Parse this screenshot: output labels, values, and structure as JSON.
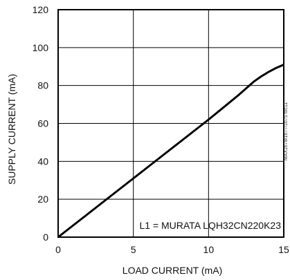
{
  "chart_data": {
    "type": "line",
    "title": "",
    "xlabel": "LOAD CURRENT (mA)",
    "ylabel": "SUPPLY CURRENT (mA)",
    "xlim": [
      0,
      15
    ],
    "ylim": [
      0,
      120
    ],
    "xticks": [
      0,
      5,
      10,
      15
    ],
    "yticks": [
      0,
      20,
      40,
      60,
      80,
      100,
      120
    ],
    "grid": true,
    "annotation": "L1 = MURATA LQH32CN220K23",
    "side_note": "MAX1678/1677/1675 toc11",
    "series": [
      {
        "x": [
          0,
          1,
          2,
          3,
          4,
          5,
          6,
          7,
          8,
          9,
          10,
          11,
          12,
          12.5,
          13,
          13.5,
          14,
          14.5,
          15
        ],
        "y": [
          0,
          6.2,
          12.4,
          18.6,
          24.8,
          31,
          37.2,
          43.4,
          49.6,
          55.8,
          62,
          68.5,
          75,
          78.5,
          82,
          84.8,
          87.2,
          89.3,
          91
        ]
      }
    ]
  }
}
